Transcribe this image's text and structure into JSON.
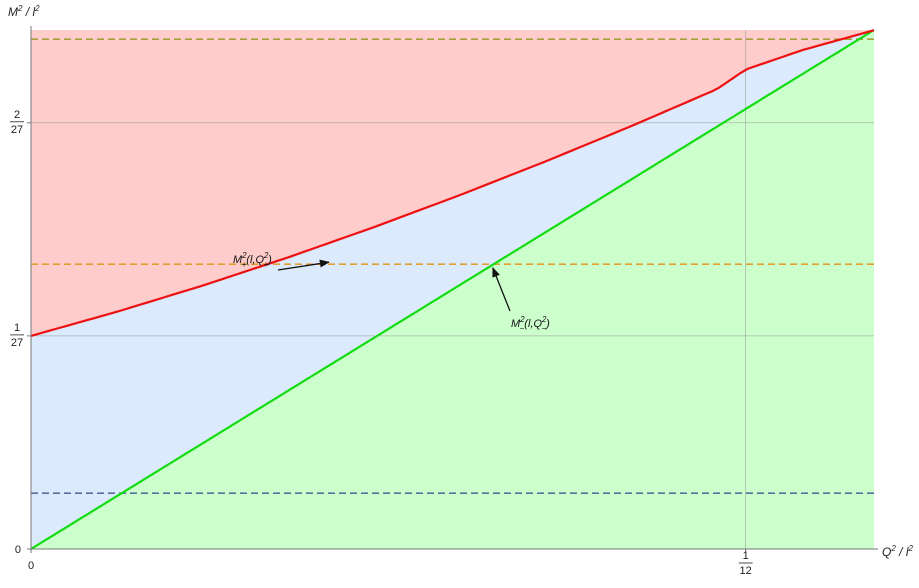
{
  "chart_data": {
    "type": "line",
    "title": "",
    "xlabel": {
      "base": "Q",
      "exp": "2",
      "sep": " / ",
      "base2": "l",
      "exp2": "2"
    },
    "ylabel": {
      "base": "M",
      "exp": "2",
      "sep": " / ",
      "base2": "l",
      "exp2": "2"
    },
    "xlim": [
      0,
      0.0983
    ],
    "ylim": [
      0,
      0.0902
    ],
    "x_ticks": [
      {
        "value": 0,
        "label": "0"
      },
      {
        "value": 0.083333,
        "num": "1",
        "den": "12"
      }
    ],
    "y_ticks": [
      {
        "value": 0,
        "label": "0"
      },
      {
        "value": 0.037037,
        "num": "1",
        "den": "27"
      },
      {
        "value": 0.074074,
        "num": "2",
        "den": "27"
      }
    ],
    "grid": "reference lines at the labeled ticks",
    "regions": [
      {
        "name": "above",
        "color": "#ffcccc"
      },
      {
        "name": "between",
        "color": "#dbeafc"
      },
      {
        "name": "below",
        "color": "#ccffcc"
      }
    ],
    "series": [
      {
        "id": "M_plus",
        "color": "#ee1111",
        "x": [
          0,
          0.01,
          0.02,
          0.03,
          0.04,
          0.05,
          0.06,
          0.07,
          0.08,
          0.083333,
          0.09,
          0.0983
        ],
        "y": [
          0.03704,
          0.04122,
          0.04577,
          0.05069,
          0.05594,
          0.0615,
          0.06736,
          0.0735,
          0.07993,
          0.08333,
          0.08673,
          0.09016
        ]
      },
      {
        "id": "M_minus",
        "color": "#11dd11",
        "x": [
          0,
          0.0983
        ],
        "y": [
          0,
          0.0902
        ]
      }
    ],
    "reference_lines": [
      {
        "axis": "y",
        "value": 0.0886,
        "color": "#a6a03c",
        "style": "dashed"
      },
      {
        "axis": "y",
        "value": 0.0495,
        "color": "#e0a030",
        "style": "dashed"
      },
      {
        "axis": "y",
        "value": 0.0097,
        "color": "#55709a",
        "style": "dashed"
      }
    ],
    "annotations": [
      {
        "id": "ann_plus",
        "base": "M",
        "exp": "2",
        "sub": "+",
        "arg_open": "(l,Q",
        "arg_exp": "2",
        "arg_sub": "+",
        "arg_close": ")",
        "target_x": 0.0352,
        "target_y": 0.0495
      },
      {
        "id": "ann_minus",
        "base": "M",
        "exp": "2",
        "sub": "−",
        "arg_open": "(l,Q",
        "arg_exp": "2",
        "arg_sub": "−",
        "arg_close": ")",
        "target_x": 0.0535,
        "target_y": 0.0492
      }
    ]
  }
}
